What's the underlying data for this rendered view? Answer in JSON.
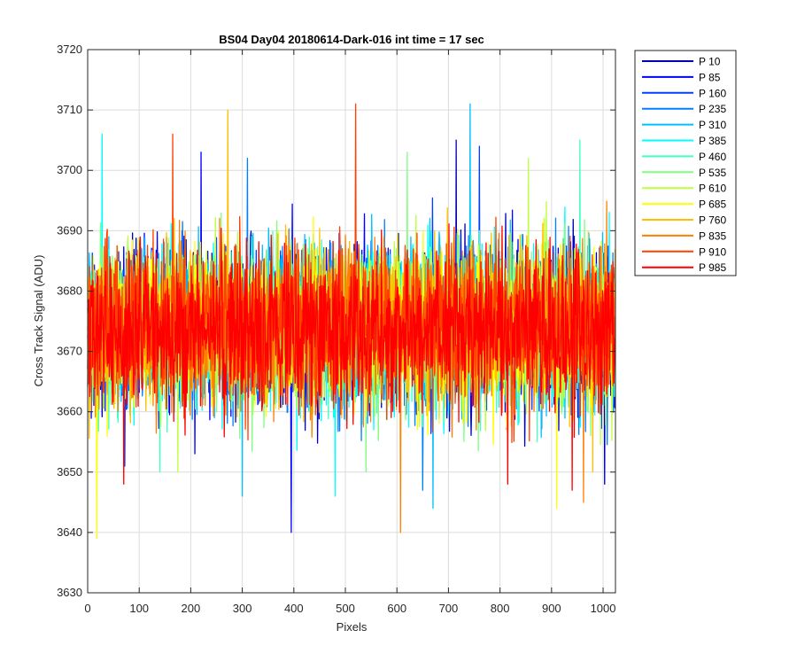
{
  "chart_data": {
    "type": "line",
    "title": "BS04 Day04 20180614-Dark-016 int time = 17 sec",
    "xlabel": "Pixels",
    "ylabel": "Cross Track Signal (ADU)",
    "xlim": [
      0,
      1024
    ],
    "ylim": [
      3630,
      3720
    ],
    "xticks": [
      0,
      100,
      200,
      300,
      400,
      500,
      600,
      700,
      800,
      900,
      1000
    ],
    "yticks": [
      3630,
      3640,
      3650,
      3660,
      3670,
      3680,
      3690,
      3700,
      3710,
      3720
    ],
    "grid": true,
    "legend_position": "outside-top-right",
    "noise_model": {
      "baseline": 3674,
      "typical_range": [
        3655,
        3695
      ],
      "points_per_series": 1024
    },
    "series": [
      {
        "name": "P 10",
        "color": "#0000b4",
        "extremes": [
          {
            "x": 715,
            "y": 3705
          },
          {
            "x": 1003,
            "y": 3648
          }
        ]
      },
      {
        "name": "P 85",
        "color": "#0000ff",
        "extremes": [
          {
            "x": 395,
            "y": 3640
          },
          {
            "x": 220,
            "y": 3703
          }
        ]
      },
      {
        "name": "P 160",
        "color": "#0040ff",
        "extremes": [
          {
            "x": 72,
            "y": 3651
          },
          {
            "x": 760,
            "y": 3704
          }
        ]
      },
      {
        "name": "P 235",
        "color": "#0080ff",
        "extremes": [
          {
            "x": 650,
            "y": 3647
          },
          {
            "x": 310,
            "y": 3702
          }
        ]
      },
      {
        "name": "P 310",
        "color": "#00c0ff",
        "extremes": [
          {
            "x": 742,
            "y": 3711
          },
          {
            "x": 670,
            "y": 3644
          },
          {
            "x": 300,
            "y": 3646
          }
        ]
      },
      {
        "name": "P 385",
        "color": "#00ffff",
        "extremes": [
          {
            "x": 28,
            "y": 3706
          },
          {
            "x": 480,
            "y": 3646
          }
        ]
      },
      {
        "name": "P 460",
        "color": "#40ffbf",
        "extremes": [
          {
            "x": 955,
            "y": 3705
          },
          {
            "x": 140,
            "y": 3650
          }
        ]
      },
      {
        "name": "P 535",
        "color": "#80ff80",
        "extremes": [
          {
            "x": 620,
            "y": 3703
          },
          {
            "x": 540,
            "y": 3650
          }
        ]
      },
      {
        "name": "P 610",
        "color": "#bfff40",
        "extremes": [
          {
            "x": 855,
            "y": 3702
          },
          {
            "x": 175,
            "y": 3650
          }
        ]
      },
      {
        "name": "P 685",
        "color": "#ffff00",
        "extremes": [
          {
            "x": 18,
            "y": 3639
          },
          {
            "x": 910,
            "y": 3644
          }
        ]
      },
      {
        "name": "P 760",
        "color": "#ffbf00",
        "extremes": [
          {
            "x": 272,
            "y": 3710
          },
          {
            "x": 980,
            "y": 3650
          }
        ]
      },
      {
        "name": "P 835",
        "color": "#ff8000",
        "extremes": [
          {
            "x": 607,
            "y": 3640
          },
          {
            "x": 962,
            "y": 3645
          }
        ]
      },
      {
        "name": "P 910",
        "color": "#ff4000",
        "extremes": [
          {
            "x": 520,
            "y": 3711
          },
          {
            "x": 165,
            "y": 3706
          }
        ]
      },
      {
        "name": "P 985",
        "color": "#ff0000",
        "extremes": [
          {
            "x": 70,
            "y": 3648
          },
          {
            "x": 815,
            "y": 3648
          },
          {
            "x": 940,
            "y": 3647
          }
        ]
      }
    ]
  }
}
